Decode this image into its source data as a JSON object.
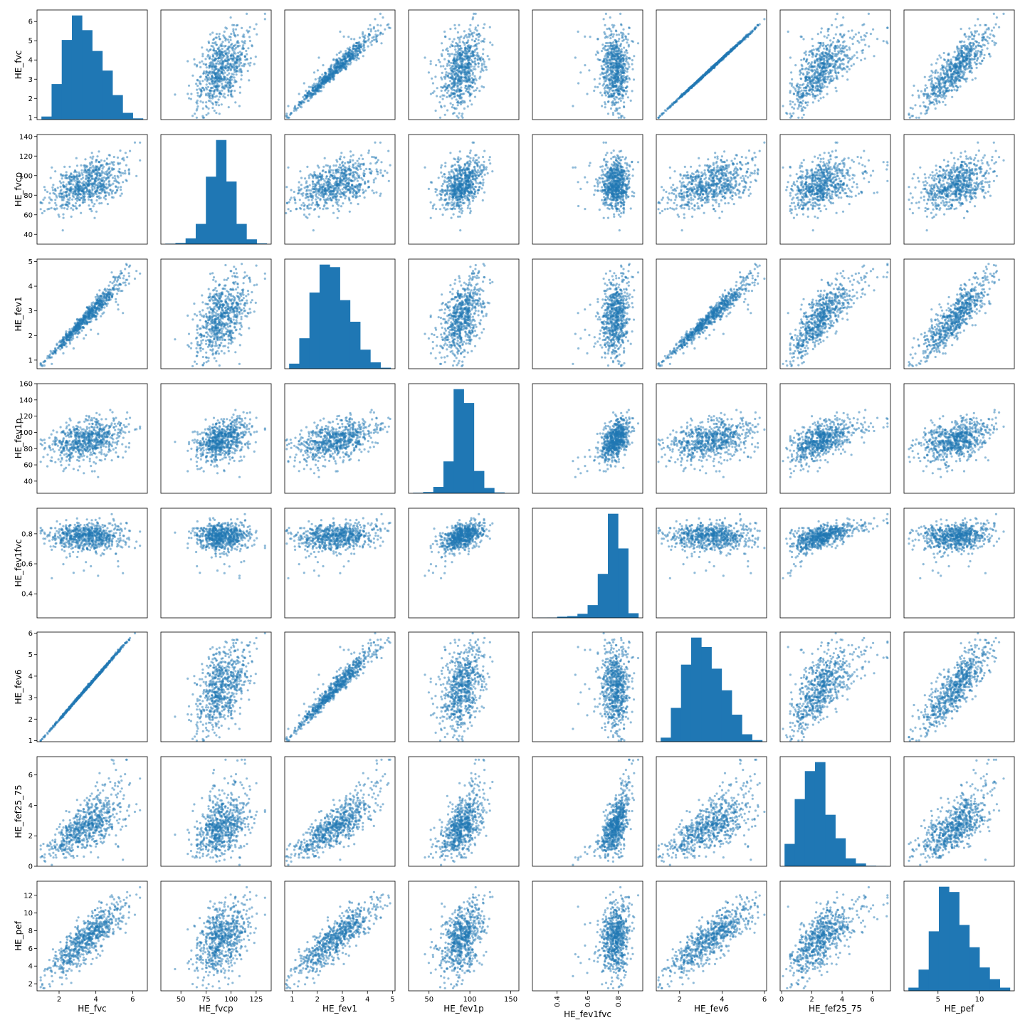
{
  "chart_data": {
    "type": "scatter_matrix",
    "variables": [
      "HE_fvc",
      "HE_fvcp",
      "HE_fev1",
      "HE_fev1p",
      "HE_fev1fvc",
      "HE_fev6",
      "HE_fef25_75",
      "HE_pef"
    ],
    "diagonal": "histogram",
    "colors": {
      "marker": "#1f77b4",
      "background": "#ffffff",
      "frame": "#000000"
    },
    "marker_alpha": 0.5,
    "n_points_per_panel": 700,
    "x_axis": [
      {
        "variable": "HE_fvc",
        "range": [
          0.8,
          6.8
        ],
        "ticks": [
          2,
          4,
          6
        ],
        "tick_labels": [
          "2",
          "4",
          "6"
        ]
      },
      {
        "variable": "HE_fvcp",
        "range": [
          30,
          140
        ],
        "ticks": [
          50,
          75,
          100,
          125
        ],
        "tick_labels": [
          "50",
          "75",
          "100",
          "125"
        ]
      },
      {
        "variable": "HE_fev1",
        "range": [
          0.7,
          5.1
        ],
        "ticks": [
          1,
          2,
          3,
          4,
          5
        ],
        "tick_labels": [
          "1",
          "2",
          "3",
          "4",
          "5"
        ]
      },
      {
        "variable": "HE_fev1p",
        "range": [
          25,
          160
        ],
        "ticks": [
          50,
          100,
          150
        ],
        "tick_labels": [
          "50",
          "100",
          "150"
        ]
      },
      {
        "variable": "HE_fev1fvc",
        "range": [
          0.24,
          0.96
        ],
        "ticks": [
          0.4,
          0.6,
          0.8
        ],
        "tick_labels": [
          "0.4",
          "0.6",
          "0.8"
        ],
        "tick_rotation": -90
      },
      {
        "variable": "HE_fev6",
        "range": [
          0.9,
          6.1
        ],
        "ticks": [
          2,
          4,
          6
        ],
        "tick_labels": [
          "2",
          "4",
          "6"
        ]
      },
      {
        "variable": "HE_fef25_75",
        "range": [
          -0.1,
          7.2
        ],
        "ticks": [
          0,
          2,
          4,
          6
        ],
        "tick_labels": [
          "0",
          "2",
          "4",
          "6"
        ]
      },
      {
        "variable": "HE_pef",
        "range": [
          0.9,
          14.2
        ],
        "ticks": [
          5,
          10
        ],
        "tick_labels": [
          "5",
          "10"
        ]
      }
    ],
    "y_axis": [
      {
        "variable": "HE_fvc",
        "range": [
          0.9,
          6.6
        ],
        "ticks": [
          1,
          2,
          3,
          4,
          5,
          6
        ],
        "tick_labels": [
          "1",
          "2",
          "3",
          "4",
          "5",
          "6"
        ]
      },
      {
        "variable": "HE_fvcp",
        "range": [
          30,
          142
        ],
        "ticks": [
          40,
          60,
          80,
          100,
          120,
          140
        ],
        "tick_labels": [
          "40",
          "60",
          "80",
          "100",
          "120",
          "140"
        ]
      },
      {
        "variable": "HE_fev1",
        "range": [
          0.65,
          5.1
        ],
        "ticks": [
          1,
          2,
          3,
          4,
          5
        ],
        "tick_labels": [
          "1",
          "2",
          "3",
          "4",
          "5"
        ]
      },
      {
        "variable": "HE_fev1p",
        "range": [
          25,
          160
        ],
        "ticks": [
          40,
          60,
          80,
          100,
          120,
          140,
          160
        ],
        "tick_labels": [
          "40",
          "60",
          "80",
          "100",
          "120",
          "140",
          "160"
        ]
      },
      {
        "variable": "HE_fev1fvc",
        "range": [
          0.24,
          0.97
        ],
        "ticks": [
          0.4,
          0.6,
          0.8
        ],
        "tick_labels": [
          "0.4",
          "0.6",
          "0.8"
        ]
      },
      {
        "variable": "HE_fev6",
        "range": [
          0.95,
          6.05
        ],
        "ticks": [
          1,
          2,
          3,
          4,
          5,
          6
        ],
        "tick_labels": [
          "1",
          "2",
          "3",
          "4",
          "5",
          "6"
        ]
      },
      {
        "variable": "HE_fef25_75",
        "range": [
          0,
          7.2
        ],
        "ticks": [
          0,
          2,
          4,
          6
        ],
        "tick_labels": [
          "0",
          "2",
          "4",
          "6"
        ]
      },
      {
        "variable": "HE_pef",
        "range": [
          1.2,
          13.6
        ],
        "ticks": [
          2,
          4,
          6,
          8,
          10,
          12
        ],
        "tick_labels": [
          "2",
          "4",
          "6",
          "8",
          "10",
          "12"
        ]
      }
    ],
    "histograms": [
      {
        "variable": "HE_fvc",
        "bin_edges": [
          0.8,
          1.36,
          1.92,
          2.48,
          3.04,
          3.6,
          4.16,
          4.72,
          5.28,
          5.84,
          6.4
        ],
        "counts": [
          25,
          290,
          650,
          850,
          730,
          560,
          400,
          200,
          55,
          10
        ]
      },
      {
        "variable": "HE_fvcp",
        "bin_edges": [
          30,
          40.8,
          51.6,
          62.4,
          73.2,
          84,
          94.8,
          105.6,
          116.4,
          127.2,
          138
        ],
        "counts": [
          5,
          12,
          60,
          210,
          700,
          1080,
          650,
          210,
          50,
          8
        ]
      },
      {
        "variable": "HE_fev1",
        "bin_edges": [
          0.7,
          1.13,
          1.56,
          1.99,
          2.42,
          2.85,
          3.28,
          3.71,
          4.14,
          4.57,
          5.0
        ],
        "counts": [
          40,
          240,
          600,
          820,
          800,
          540,
          370,
          150,
          50,
          8
        ]
      },
      {
        "variable": "HE_fev1p",
        "bin_edges": [
          25,
          37.8,
          50.6,
          63.4,
          76.2,
          89,
          101.8,
          114.6,
          127.4,
          140.2,
          153
        ],
        "counts": [
          5,
          12,
          60,
          300,
          980,
          850,
          210,
          50,
          8,
          2
        ]
      },
      {
        "variable": "HE_fev1fvc",
        "bin_edges": [
          0.24,
          0.31,
          0.38,
          0.45,
          0.52,
          0.59,
          0.66,
          0.73,
          0.8,
          0.87,
          0.94
        ],
        "counts": [
          2,
          3,
          10,
          15,
          35,
          110,
          380,
          900,
          600,
          40
        ]
      },
      {
        "variable": "HE_fev6",
        "bin_edges": [
          0.9,
          1.4,
          1.9,
          2.4,
          2.9,
          3.4,
          3.9,
          4.4,
          4.9,
          5.4,
          5.9
        ],
        "counts": [
          30,
          250,
          570,
          770,
          700,
          540,
          380,
          200,
          55,
          12
        ]
      },
      {
        "variable": "HE_fef25_75",
        "bin_edges": [
          0.0,
          0.7,
          1.4,
          2.1,
          2.8,
          3.5,
          4.2,
          4.9,
          5.6,
          6.3,
          7.0
        ],
        "counts": [
          200,
          600,
          850,
          930,
          460,
          250,
          70,
          25,
          5,
          3
        ]
      },
      {
        "variable": "HE_pef",
        "bin_edges": [
          1.2,
          2.4,
          3.6,
          4.8,
          6.0,
          7.2,
          8.4,
          9.6,
          10.8,
          12.0,
          13.2
        ],
        "counts": [
          30,
          200,
          560,
          980,
          930,
          620,
          410,
          220,
          110,
          30
        ]
      }
    ]
  }
}
